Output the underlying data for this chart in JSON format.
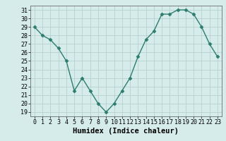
{
  "x": [
    0,
    1,
    2,
    3,
    4,
    5,
    6,
    7,
    8,
    9,
    10,
    11,
    12,
    13,
    14,
    15,
    16,
    17,
    18,
    19,
    20,
    21,
    22,
    23
  ],
  "y": [
    29,
    28,
    27.5,
    26.5,
    25,
    21.5,
    23,
    21.5,
    20,
    19,
    20,
    21.5,
    23,
    25.5,
    27.5,
    28.5,
    30.5,
    30.5,
    31,
    31,
    30.5,
    29,
    27,
    25.5
  ],
  "xlabel": "Humidex (Indice chaleur)",
  "ylim": [
    18.5,
    31.5
  ],
  "xlim": [
    -0.5,
    23.5
  ],
  "yticks": [
    19,
    20,
    21,
    22,
    23,
    24,
    25,
    26,
    27,
    28,
    29,
    30,
    31
  ],
  "xticks": [
    0,
    1,
    2,
    3,
    4,
    5,
    6,
    7,
    8,
    9,
    10,
    11,
    12,
    13,
    14,
    15,
    16,
    17,
    18,
    19,
    20,
    21,
    22,
    23
  ],
  "line_color": "#2d7d6e",
  "marker": "D",
  "marker_size": 2.5,
  "bg_color": "#d5ecea",
  "grid_color": "#b0ccca",
  "label_fontsize": 7.5,
  "tick_fontsize": 6
}
